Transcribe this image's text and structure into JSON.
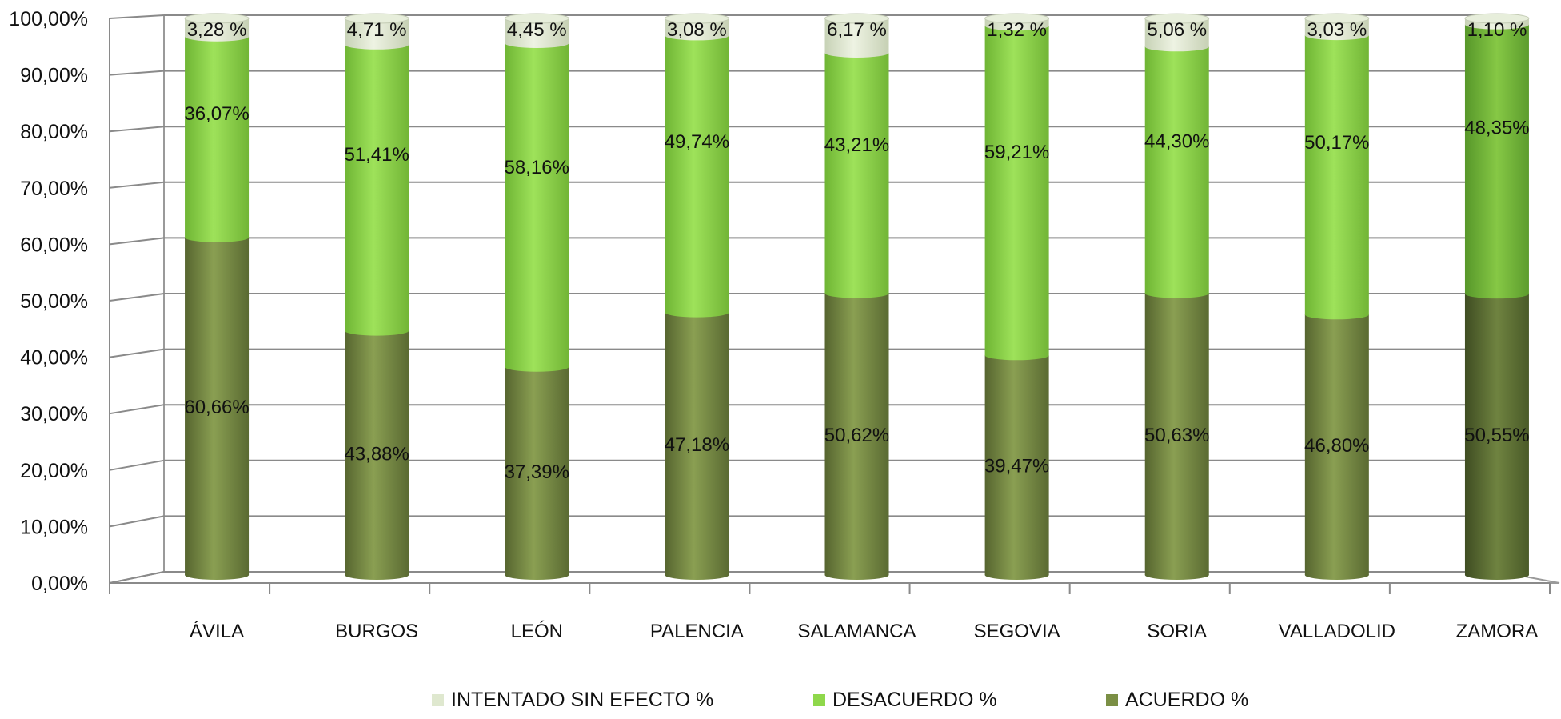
{
  "chart_data": {
    "type": "bar",
    "stacked": true,
    "three_d": true,
    "categories": [
      "ÁVILA",
      "BURGOS",
      "LEÓN",
      "PALENCIA",
      "SALAMANCA",
      "SEGOVIA",
      "SORIA",
      "VALLADOLID",
      "ZAMORA"
    ],
    "series": [
      {
        "name": "ACUERDO %",
        "values": [
          60.66,
          43.88,
          37.39,
          47.18,
          50.62,
          39.47,
          50.63,
          46.8,
          50.55
        ],
        "labels": [
          "60,66%",
          "43,88%",
          "37,39%",
          "47,18%",
          "50,62%",
          "39,47%",
          "50,63%",
          "46,80%",
          "50,55%"
        ],
        "color": "#7b8f45"
      },
      {
        "name": "DESACUERDO %",
        "values": [
          36.07,
          51.41,
          58.16,
          49.74,
          43.21,
          59.21,
          44.3,
          50.17,
          48.35
        ],
        "labels": [
          "36,07%",
          "51,41%",
          "58,16%",
          "49,74%",
          "43,21%",
          "59,21%",
          "44,30%",
          "50,17%",
          "48,35%"
        ],
        "color": "#8fd84b"
      },
      {
        "name": "INTENTADO  SIN EFECTO  %",
        "values": [
          3.28,
          4.71,
          4.45,
          3.08,
          6.17,
          1.32,
          5.06,
          3.03,
          1.1
        ],
        "labels": [
          "3,28 %",
          "4,71 %",
          "4,45 %",
          "3,08 %",
          "6,17 %",
          "1,32 %",
          "5,06 %",
          "3,03 %",
          "1,10 %"
        ],
        "color": "#dfe8cf"
      }
    ],
    "y_tick_labels": [
      "0,00%",
      "10,00%",
      "20,00%",
      "30,00%",
      "40,00%",
      "50,00%",
      "60,00%",
      "70,00%",
      "80,00%",
      "90,00%",
      "100,00%"
    ],
    "ylim": [
      0,
      100
    ],
    "grid": true,
    "legend_position": "bottom",
    "title": "",
    "xlabel": "",
    "ylabel": ""
  }
}
